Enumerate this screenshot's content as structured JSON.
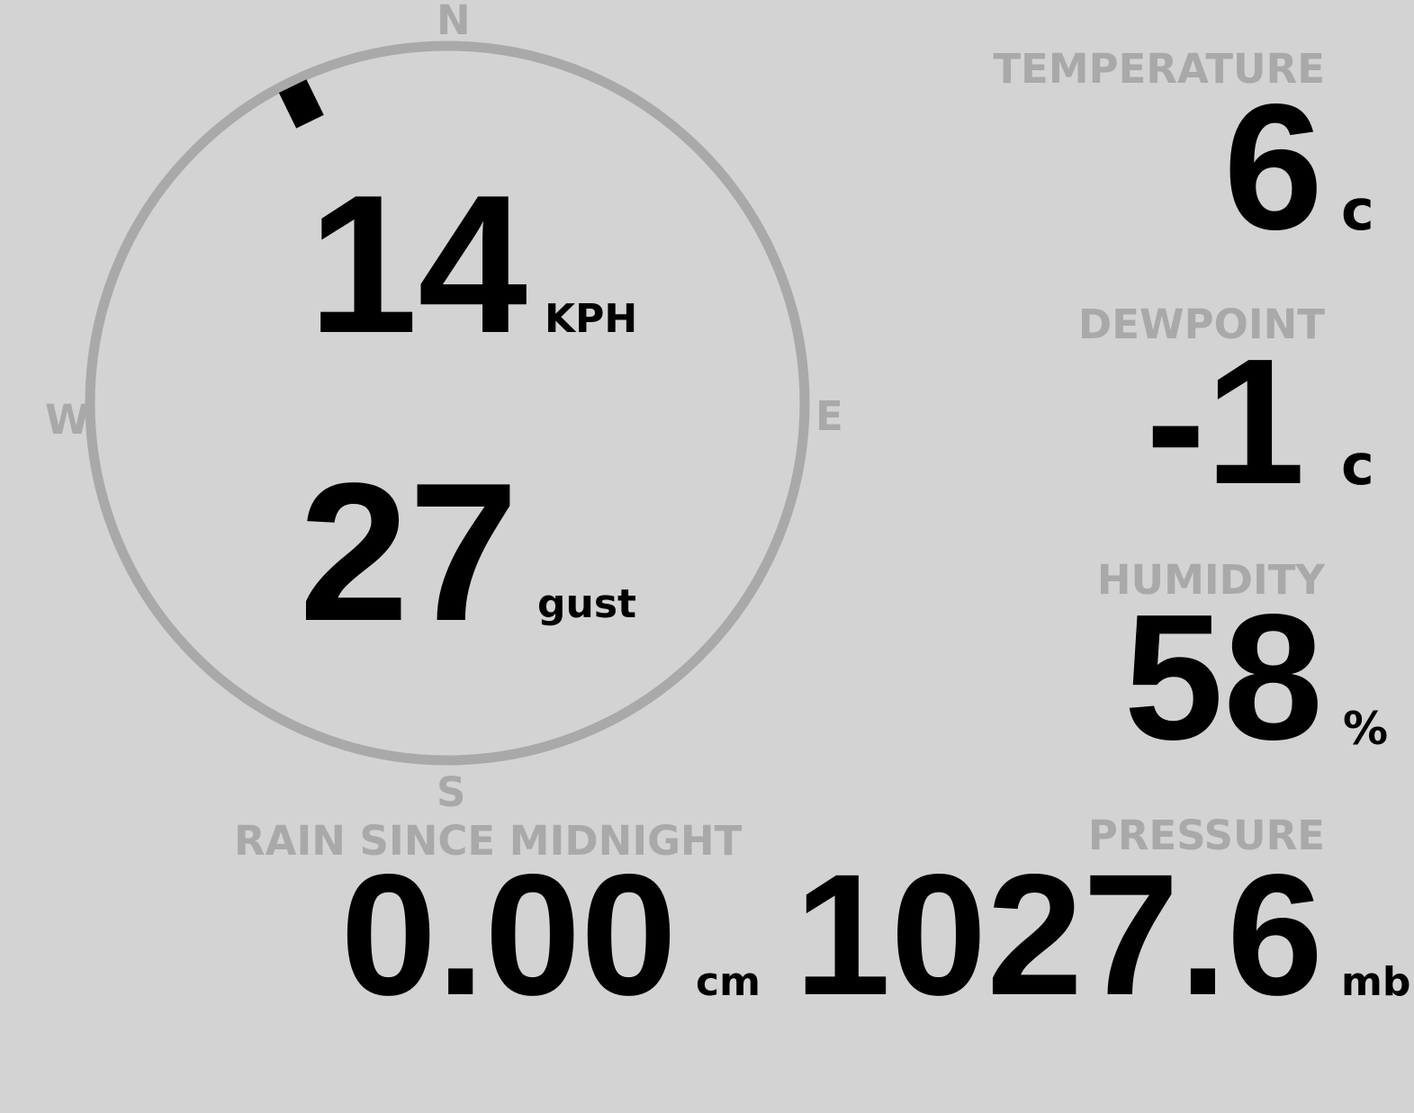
{
  "wind": {
    "speed": "14",
    "speed_unit": "KPH",
    "gust": "27",
    "gust_unit": "gust",
    "direction_deg": 334,
    "compass": {
      "n": "N",
      "e": "E",
      "s": "S",
      "w": "W"
    }
  },
  "temperature": {
    "label": "TEMPERATURE",
    "value": "6",
    "unit": "c"
  },
  "dewpoint": {
    "label": "DEWPOINT",
    "value": "-1",
    "unit": "c"
  },
  "humidity": {
    "label": "HUMIDITY",
    "value": "58",
    "unit": "%"
  },
  "pressure": {
    "label": "PRESSURE",
    "value": "1027.6",
    "unit": "mb"
  },
  "rain": {
    "label": "RAIN SINCE MIDNIGHT",
    "value": "0.00",
    "unit": "cm"
  },
  "colors": {
    "background": "#d3d3d3",
    "label": "#a9a9a9",
    "value": "#000000",
    "dial": "#a9a9a9"
  }
}
